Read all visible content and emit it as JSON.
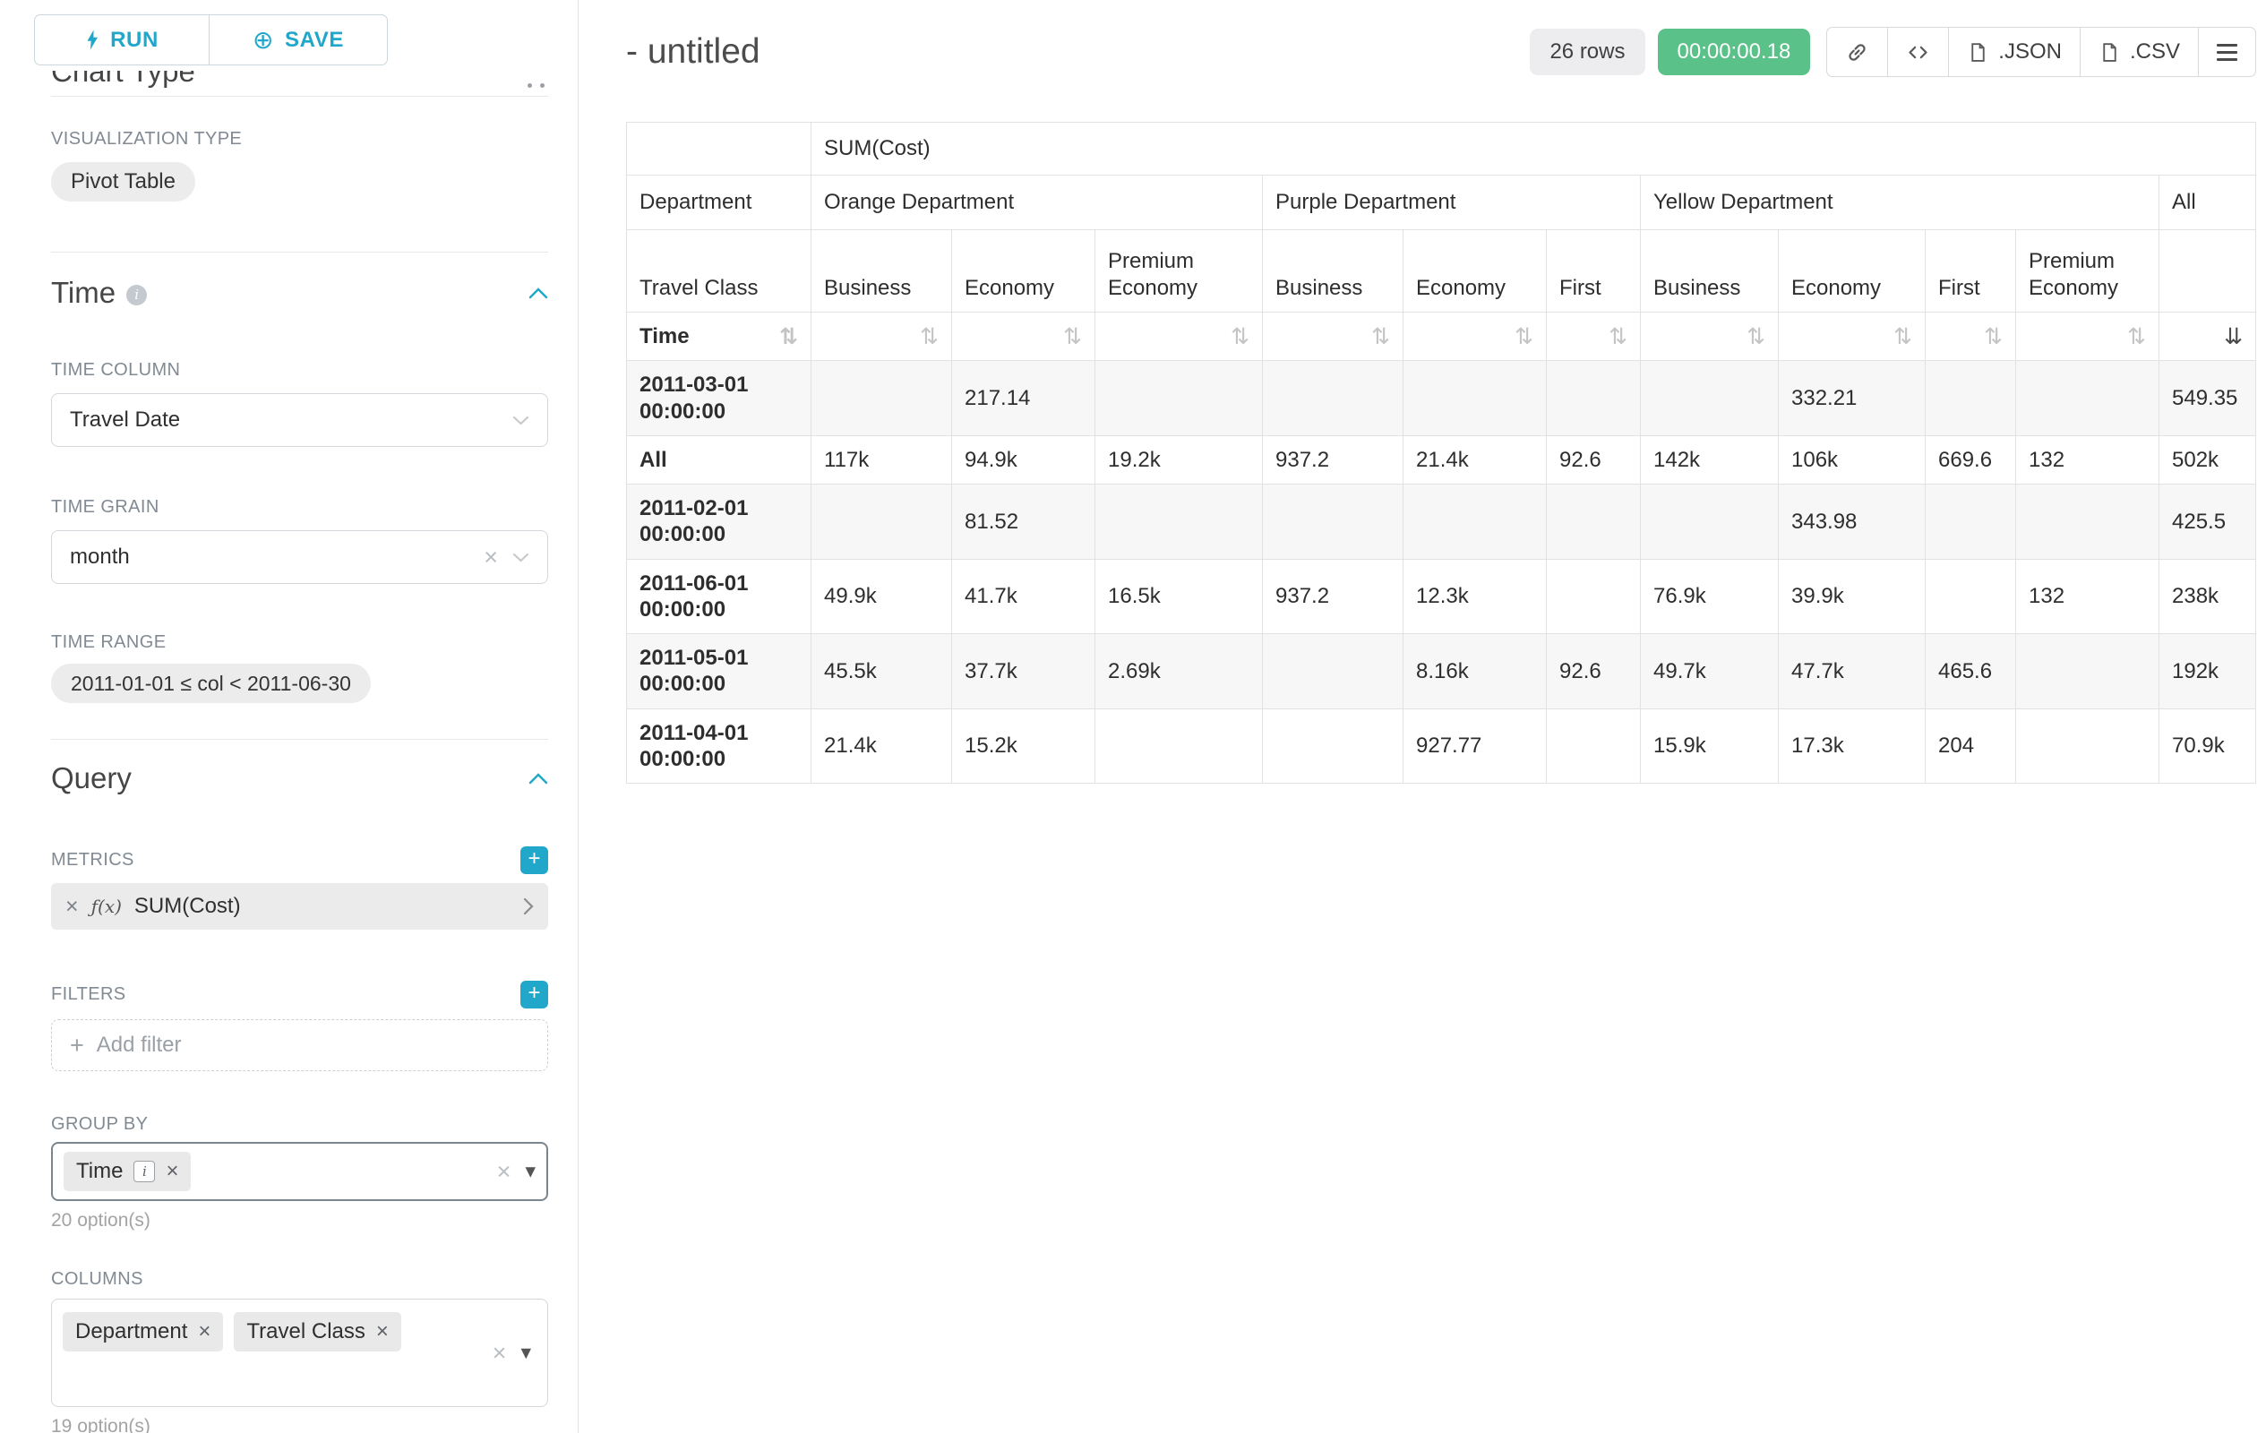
{
  "sidebar": {
    "run_button": "RUN",
    "save_button": "SAVE",
    "chart_type_heading": "Chart Type",
    "visualization": {
      "label": "VISUALIZATION TYPE",
      "value": "Pivot Table"
    },
    "time": {
      "heading": "Time",
      "time_column_label": "TIME COLUMN",
      "time_column_value": "Travel Date",
      "time_grain_label": "TIME GRAIN",
      "time_grain_value": "month",
      "time_range_label": "TIME RANGE",
      "time_range_value": "2011-01-01 ≤ col < 2011-06-30"
    },
    "query": {
      "heading": "Query",
      "metrics_label": "METRICS",
      "metric_fx": "ƒ(x)",
      "metric_value": "SUM(Cost)",
      "filters_label": "FILTERS",
      "add_filter": "Add filter",
      "group_by_label": "GROUP BY",
      "group_by_chip": "Time",
      "group_by_hint": "20 option(s)",
      "columns_label": "COLUMNS",
      "columns_chips": [
        "Department",
        "Travel Class"
      ],
      "columns_hint": "19 option(s)"
    }
  },
  "main": {
    "title": "- untitled",
    "rows_badge": "26 rows",
    "timer": "00:00:00.18",
    "json_button": ".JSON",
    "csv_button": ".CSV",
    "pivot": {
      "metric_header": "SUM(Cost)",
      "department_label": "Department",
      "travel_class_label": "Travel Class",
      "time_label": "Time",
      "all_label": "All",
      "groups": [
        {
          "name": "Orange Department",
          "classes": [
            "Business",
            "Economy",
            "Premium Economy"
          ]
        },
        {
          "name": "Purple Department",
          "classes": [
            "Business",
            "Economy",
            "First"
          ]
        },
        {
          "name": "Yellow Department",
          "classes": [
            "Business",
            "Economy",
            "First",
            "Premium Economy"
          ]
        }
      ],
      "rows": [
        {
          "label": "2011-03-01 00:00:00",
          "values": [
            "",
            "217.14",
            "",
            "",
            "",
            "",
            "",
            "332.21",
            "",
            "",
            "549.35"
          ]
        },
        {
          "label": "All",
          "values": [
            "117k",
            "94.9k",
            "19.2k",
            "937.2",
            "21.4k",
            "92.6",
            "142k",
            "106k",
            "669.6",
            "132",
            "502k"
          ]
        },
        {
          "label": "2011-02-01 00:00:00",
          "values": [
            "",
            "81.52",
            "",
            "",
            "",
            "",
            "",
            "343.98",
            "",
            "",
            "425.5"
          ]
        },
        {
          "label": "2011-06-01 00:00:00",
          "values": [
            "49.9k",
            "41.7k",
            "16.5k",
            "937.2",
            "12.3k",
            "",
            "76.9k",
            "39.9k",
            "",
            "132",
            "238k"
          ]
        },
        {
          "label": "2011-05-01 00:00:00",
          "values": [
            "45.5k",
            "37.7k",
            "2.69k",
            "",
            "8.16k",
            "92.6",
            "49.7k",
            "47.7k",
            "465.6",
            "",
            "192k"
          ]
        },
        {
          "label": "2011-04-01 00:00:00",
          "values": [
            "21.4k",
            "15.2k",
            "",
            "",
            "927.77",
            "",
            "15.9k",
            "17.3k",
            "204",
            "",
            "70.9k"
          ]
        }
      ]
    }
  }
}
